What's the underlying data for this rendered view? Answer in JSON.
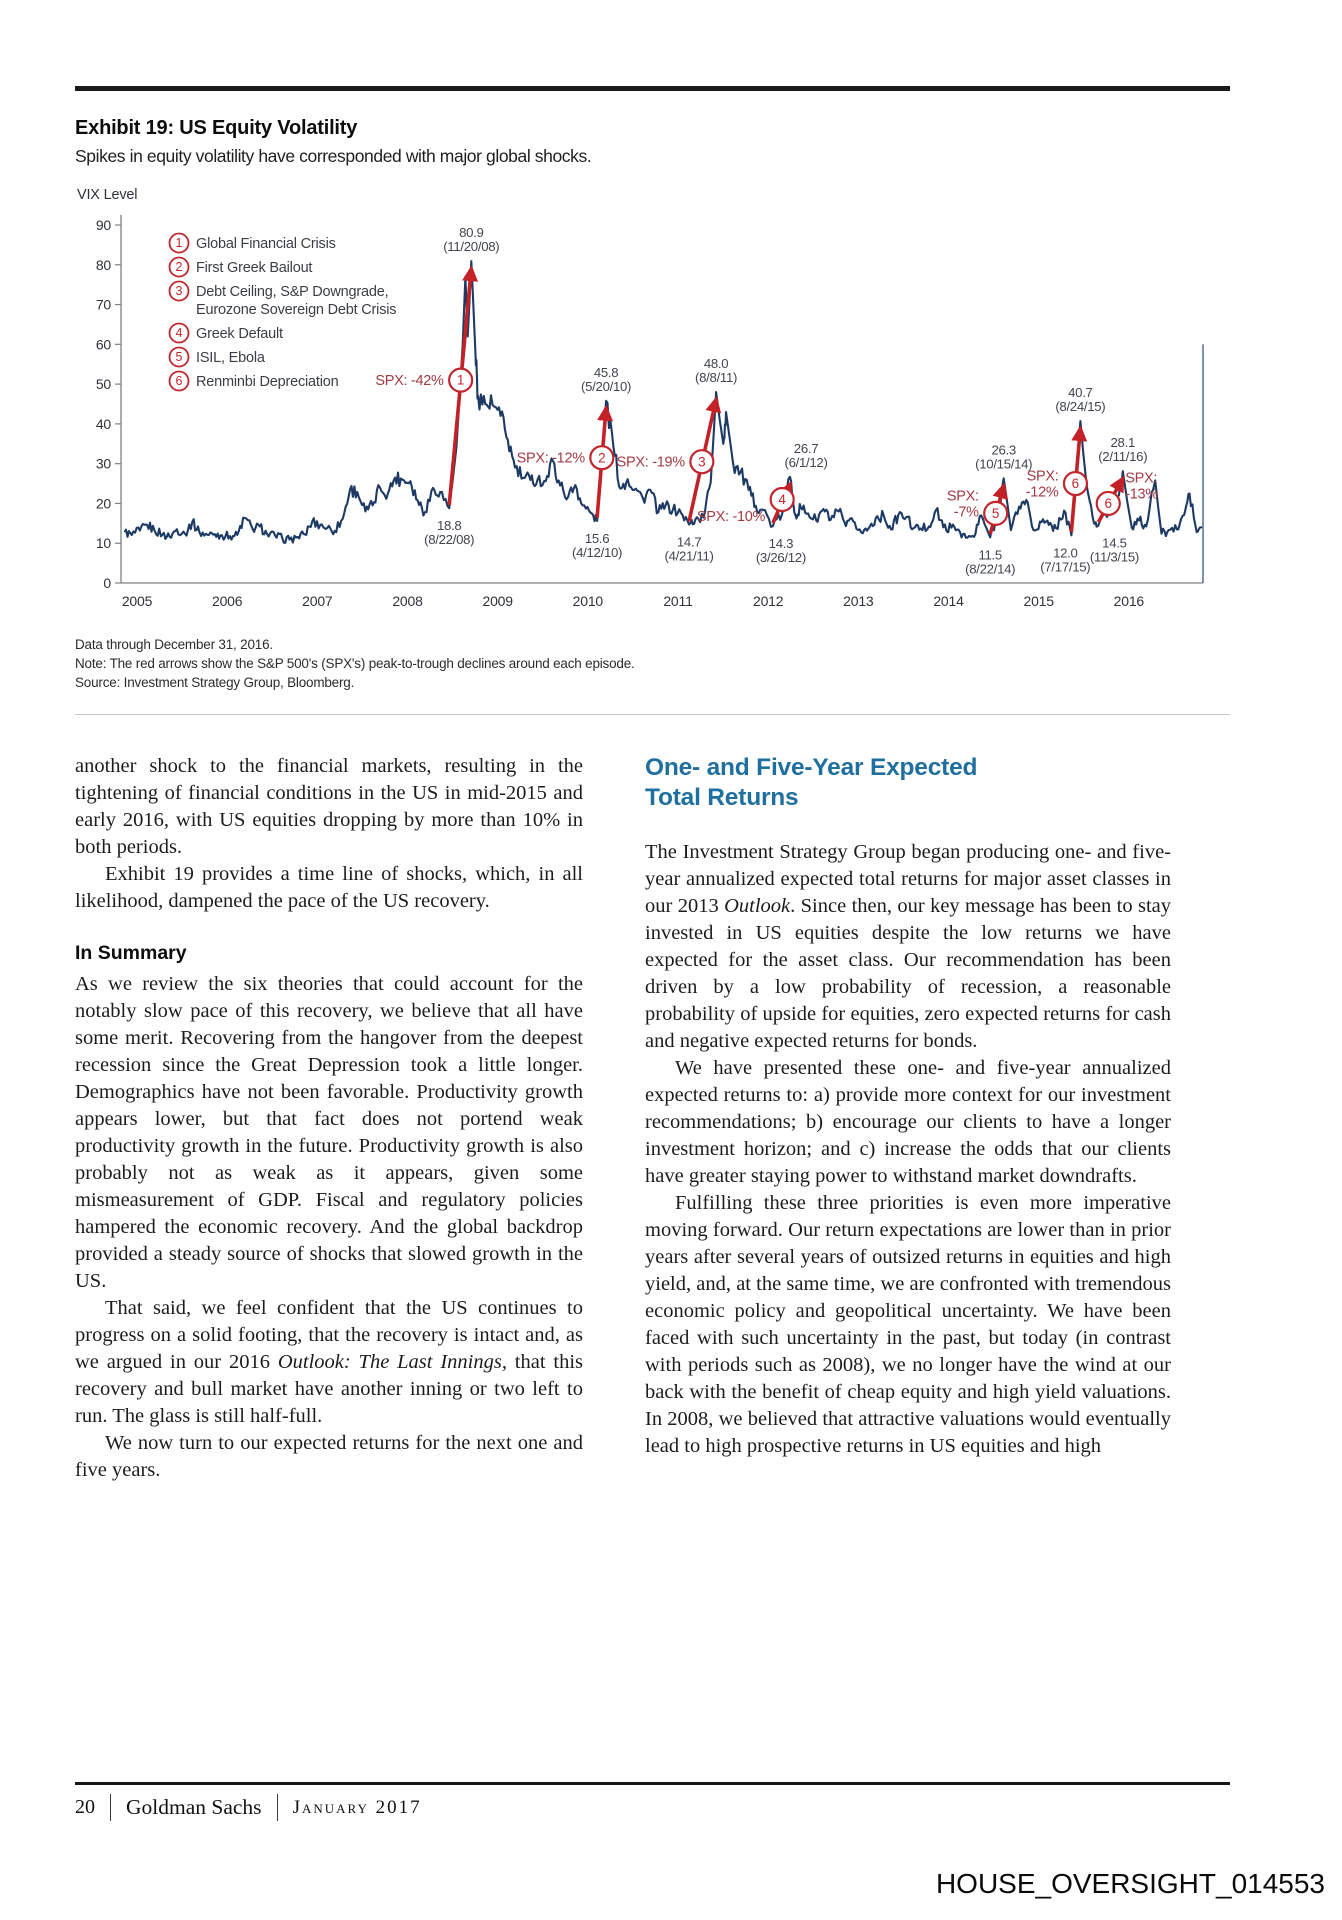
{
  "exhibit": {
    "title": "Exhibit 19: US Equity Volatility",
    "subtitle": "Spikes in equity volatility have corresponded with major global shocks.",
    "notes": [
      "Data through December 31, 2016.",
      "Note: The red arrows show the S&P 500's (SPX's) peak-to-trough declines around each episode.",
      "Source: Investment Strategy Group, Bloomberg."
    ]
  },
  "chart_data": {
    "type": "line",
    "title": "Exhibit 19: US Equity Volatility",
    "subtitle": "Spikes in equity volatility have corresponded with major global shocks.",
    "ylabel": "VIX Level",
    "xlabel": "",
    "ylim": [
      0,
      90
    ],
    "yticks": [
      0,
      10,
      20,
      30,
      40,
      50,
      60,
      70,
      80,
      90
    ],
    "xticks": [
      "2005",
      "2006",
      "2007",
      "2008",
      "2009",
      "2010",
      "2011",
      "2012",
      "2013",
      "2014",
      "2015",
      "2016"
    ],
    "grid": false,
    "legend_position": "top-left",
    "colors": {
      "line": "#1c3a64",
      "arrow": "#c42127",
      "spx_label": "#a23b44",
      "annotation": "#3f454d",
      "badge": "#c0272d"
    },
    "legend": [
      {
        "num": "1",
        "label": "Global Financial Crisis"
      },
      {
        "num": "2",
        "label": "First Greek Bailout"
      },
      {
        "num": "3",
        "label": "Debt Ceiling, S&P Downgrade,\nEurozone Sovereign Debt Crisis"
      },
      {
        "num": "4",
        "label": "Greek Default"
      },
      {
        "num": "5",
        "label": "ISIL, Ebola"
      },
      {
        "num": "6",
        "label": "Renminbi Depreciation"
      }
    ],
    "episodes": [
      {
        "num": "1",
        "spx": "-42%",
        "label_style": "inline",
        "label_side": "left",
        "label_v": 51,
        "badge_v": 51,
        "trough": {
          "v": 18.8,
          "t": 2008.64,
          "date": "(8/22/08)",
          "dx": 0
        },
        "peak": {
          "v": 80.9,
          "t": 2008.885,
          "date": "(11/20/08)",
          "dx": 0
        }
      },
      {
        "num": "2",
        "spx": "-12%",
        "label_style": "inline",
        "label_side": "left",
        "label_v": 31.5,
        "badge_v": 31.5,
        "trough": {
          "v": 15.6,
          "t": 2010.28,
          "date": "(4/12/10)",
          "dx": 0
        },
        "peak": {
          "v": 45.8,
          "t": 2010.38,
          "date": "(5/20/10)",
          "dx": 0
        }
      },
      {
        "num": "3",
        "spx": "-19%",
        "label_style": "inline",
        "label_side": "left",
        "label_v": 30.5,
        "badge_v": 30.5,
        "trough": {
          "v": 14.7,
          "t": 2011.3,
          "date": "(4/21/11)",
          "dx": 0
        },
        "peak": {
          "v": 48.0,
          "t": 2011.6,
          "date": "(8/8/11)",
          "dx": 0
        }
      },
      {
        "num": "4",
        "spx": "-10%",
        "label_style": "inline",
        "label_side": "left",
        "label_v": 16.8,
        "badge_v": 21,
        "trough": {
          "v": 14.3,
          "t": 2012.23,
          "date": "(3/26/12)",
          "dx": 8
        },
        "peak": {
          "v": 26.7,
          "t": 2012.42,
          "date": "(6/1/12)",
          "dx": 16
        }
      },
      {
        "num": "5",
        "spx": "-7%",
        "label_style": "stacked",
        "label_side": "left",
        "label_v": 22,
        "badge_v": 17.5,
        "trough": {
          "v": 11.5,
          "t": 2014.64,
          "date": "(8/22/14)",
          "dx": 0
        },
        "peak": {
          "v": 26.3,
          "t": 2014.79,
          "date": "(10/15/14)",
          "dx": 0
        }
      },
      {
        "num": "6",
        "spx": "-12%",
        "label_style": "stacked",
        "label_side": "left",
        "label_v": 27,
        "badge_v": 25,
        "trough": {
          "v": 12.0,
          "t": 2015.54,
          "date": "(7/17/15)",
          "dx": -6
        },
        "peak": {
          "v": 40.7,
          "t": 2015.64,
          "date": "(8/24/15)",
          "dx": 0
        }
      },
      {
        "num": "6",
        "spx": "-13%",
        "label_style": "stacked",
        "label_side": "right",
        "label_v": 26.5,
        "badge_v": 20,
        "trough": {
          "v": 14.5,
          "t": 2015.84,
          "date": "(11/3/15)",
          "dx": 16
        },
        "peak": {
          "v": 28.1,
          "t": 2016.11,
          "date": "(2/11/16)",
          "dx": 0
        }
      }
    ],
    "series": [
      {
        "name": "VIX",
        "points": [
          [
            2005.04,
            12.8
          ],
          [
            2005.12,
            12.1
          ],
          [
            2005.21,
            13.2
          ],
          [
            2005.29,
            14.6
          ],
          [
            2005.37,
            13.3
          ],
          [
            2005.46,
            12.2
          ],
          [
            2005.54,
            11.6
          ],
          [
            2005.62,
            13.5
          ],
          [
            2005.71,
            12.4
          ],
          [
            2005.79,
            15.3
          ],
          [
            2005.87,
            12.8
          ],
          [
            2005.96,
            12.1
          ],
          [
            2006.04,
            12.3
          ],
          [
            2006.12,
            12.0
          ],
          [
            2006.21,
            11.8
          ],
          [
            2006.29,
            12.1
          ],
          [
            2006.37,
            16.4
          ],
          [
            2006.46,
            13.6
          ],
          [
            2006.54,
            14.2
          ],
          [
            2006.62,
            12.3
          ],
          [
            2006.71,
            11.9
          ],
          [
            2006.79,
            11.2
          ],
          [
            2006.87,
            10.9
          ],
          [
            2006.96,
            11.6
          ],
          [
            2007.04,
            12.2
          ],
          [
            2007.12,
            15.4
          ],
          [
            2007.21,
            14.6
          ],
          [
            2007.29,
            13.9
          ],
          [
            2007.37,
            13.1
          ],
          [
            2007.46,
            16.2
          ],
          [
            2007.54,
            23.5
          ],
          [
            2007.62,
            22.9
          ],
          [
            2007.71,
            18.0
          ],
          [
            2007.79,
            19.5
          ],
          [
            2007.87,
            24.1
          ],
          [
            2007.96,
            22.5
          ],
          [
            2008.04,
            26.5
          ],
          [
            2008.12,
            26.0
          ],
          [
            2008.21,
            25.6
          ],
          [
            2008.29,
            20.8
          ],
          [
            2008.37,
            17.8
          ],
          [
            2008.46,
            23.9
          ],
          [
            2008.54,
            22.9
          ],
          [
            2008.64,
            18.8
          ],
          [
            2008.72,
            34.0
          ],
          [
            2008.79,
            59.9
          ],
          [
            2008.82,
            77.0
          ],
          [
            2008.845,
            62.0
          ],
          [
            2008.885,
            80.9
          ],
          [
            2008.93,
            58.0
          ],
          [
            2008.96,
            47.0
          ],
          [
            2009.04,
            45.0
          ],
          [
            2009.12,
            44.8
          ],
          [
            2009.21,
            42.0
          ],
          [
            2009.29,
            36.0
          ],
          [
            2009.37,
            29.0
          ],
          [
            2009.46,
            26.4
          ],
          [
            2009.54,
            25.9
          ],
          [
            2009.62,
            26.0
          ],
          [
            2009.71,
            25.6
          ],
          [
            2009.79,
            30.7
          ],
          [
            2009.87,
            24.5
          ],
          [
            2009.96,
            21.7
          ],
          [
            2010.04,
            24.6
          ],
          [
            2010.12,
            19.5
          ],
          [
            2010.21,
            17.6
          ],
          [
            2010.28,
            15.6
          ],
          [
            2010.38,
            45.8
          ],
          [
            2010.46,
            34.5
          ],
          [
            2010.54,
            23.7
          ],
          [
            2010.62,
            26.1
          ],
          [
            2010.71,
            23.7
          ],
          [
            2010.79,
            21.2
          ],
          [
            2010.87,
            23.4
          ],
          [
            2010.96,
            17.8
          ],
          [
            2011.04,
            19.5
          ],
          [
            2011.12,
            18.4
          ],
          [
            2011.21,
            17.7
          ],
          [
            2011.3,
            14.7
          ],
          [
            2011.37,
            16.0
          ],
          [
            2011.46,
            16.5
          ],
          [
            2011.54,
            25.3
          ],
          [
            2011.6,
            48.0
          ],
          [
            2011.68,
            35.0
          ],
          [
            2011.71,
            43.0
          ],
          [
            2011.79,
            29.9
          ],
          [
            2011.87,
            27.8
          ],
          [
            2011.96,
            23.4
          ],
          [
            2012.04,
            19.4
          ],
          [
            2012.12,
            18.4
          ],
          [
            2012.23,
            14.3
          ],
          [
            2012.33,
            17.2
          ],
          [
            2012.42,
            26.7
          ],
          [
            2012.48,
            17.1
          ],
          [
            2012.54,
            18.9
          ],
          [
            2012.62,
            17.5
          ],
          [
            2012.71,
            15.7
          ],
          [
            2012.79,
            18.6
          ],
          [
            2012.87,
            15.9
          ],
          [
            2012.96,
            18.0
          ],
          [
            2013.04,
            14.3
          ],
          [
            2013.12,
            15.5
          ],
          [
            2013.21,
            12.7
          ],
          [
            2013.29,
            13.7
          ],
          [
            2013.37,
            16.3
          ],
          [
            2013.46,
            16.9
          ],
          [
            2013.54,
            13.5
          ],
          [
            2013.62,
            17.0
          ],
          [
            2013.71,
            16.6
          ],
          [
            2013.79,
            13.8
          ],
          [
            2013.87,
            13.7
          ],
          [
            2013.96,
            14.2
          ],
          [
            2014.04,
            18.4
          ],
          [
            2014.12,
            14.0
          ],
          [
            2014.21,
            13.9
          ],
          [
            2014.29,
            13.4
          ],
          [
            2014.37,
            11.4
          ],
          [
            2014.46,
            11.6
          ],
          [
            2014.54,
            17.0
          ],
          [
            2014.64,
            11.5
          ],
          [
            2014.71,
            16.3
          ],
          [
            2014.79,
            26.3
          ],
          [
            2014.87,
            13.3
          ],
          [
            2014.96,
            19.2
          ],
          [
            2015.04,
            20.9
          ],
          [
            2015.12,
            13.3
          ],
          [
            2015.21,
            15.3
          ],
          [
            2015.29,
            14.6
          ],
          [
            2015.37,
            13.8
          ],
          [
            2015.46,
            18.2
          ],
          [
            2015.54,
            12.0
          ],
          [
            2015.64,
            40.7
          ],
          [
            2015.71,
            24.5
          ],
          [
            2015.79,
            15.1
          ],
          [
            2015.84,
            14.5
          ],
          [
            2015.96,
            18.2
          ],
          [
            2016.04,
            20.2
          ],
          [
            2016.11,
            28.1
          ],
          [
            2016.21,
            13.9
          ],
          [
            2016.29,
            15.7
          ],
          [
            2016.37,
            14.2
          ],
          [
            2016.47,
            25.8
          ],
          [
            2016.54,
            12.4
          ],
          [
            2016.62,
            13.3
          ],
          [
            2016.71,
            13.5
          ],
          [
            2016.79,
            17.1
          ],
          [
            2016.85,
            22.5
          ],
          [
            2016.93,
            12.8
          ],
          [
            2016.99,
            14.1
          ]
        ]
      }
    ]
  },
  "body": {
    "left": {
      "items": [
        {
          "type": "p",
          "indent": false,
          "runs": [
            [
              "t",
              "another shock to the financial markets, resulting in the tightening of financial conditions in the US in mid-2015 and early 2016, with US equities dropping by more than 10% in both periods."
            ]
          ]
        },
        {
          "type": "p",
          "indent": true,
          "runs": [
            [
              "t",
              "Exhibit 19 provides a time line of shocks, which, in all likelihood, dampened the pace of the US recovery."
            ]
          ]
        },
        {
          "type": "h",
          "text": "In Summary"
        },
        {
          "type": "p",
          "indent": false,
          "runs": [
            [
              "t",
              "As we review the six theories that could account for the notably slow pace of this recovery, we believe that all have some merit. Recovering from the hangover from the deepest recession since the Great Depression took a little longer. Demographics have not been favorable. Productivity growth appears lower, but that fact does not portend weak productivity growth in the future. Productivity growth is also probably not as weak as it appears, given some mismeasurement of GDP. Fiscal and regulatory policies hampered the economic recovery. And the global backdrop provided a steady source of shocks that slowed growth in the US."
            ]
          ]
        },
        {
          "type": "p",
          "indent": true,
          "runs": [
            [
              "t",
              "That said, we feel confident that the US continues to progress on a solid footing, that the recovery is intact and, as we argued in our 2016 "
            ],
            [
              "i",
              "Outlook: The Last Innings"
            ],
            [
              "t",
              ", that this recovery and bull market have another inning or two left to run. The glass is still half-full."
            ]
          ]
        },
        {
          "type": "p",
          "indent": true,
          "runs": [
            [
              "t",
              "We now turn to our expected returns for the next one and five years."
            ]
          ]
        }
      ]
    },
    "right": {
      "heading_lines": [
        "One- and Five-Year Expected",
        "Total Returns"
      ],
      "items": [
        {
          "type": "p",
          "indent": false,
          "runs": [
            [
              "t",
              "The Investment Strategy Group began producing one- and five-year annualized expected total returns for major asset classes in our 2013 "
            ],
            [
              "i",
              "Outlook"
            ],
            [
              "t",
              ". Since then, our key message has been to stay invested in US equities despite the low returns we have expected for the asset class. Our recommendation has been driven by a low probability of recession, a reasonable probability of upside for equities, zero expected returns for cash and negative expected returns for bonds."
            ]
          ]
        },
        {
          "type": "p",
          "indent": true,
          "runs": [
            [
              "t",
              "We have presented these one- and five-year annualized expected returns to: a) provide more context for our investment recommendations; b) encourage our clients to have a longer investment horizon; and c) increase the odds that our clients have greater staying power to withstand market downdrafts."
            ]
          ]
        },
        {
          "type": "p",
          "indent": true,
          "runs": [
            [
              "t",
              "Fulfilling these three priorities is even more imperative moving forward. Our return expectations are lower than in prior years after several years of outsized returns in equities and high yield, and, at the same time, we are confronted with tremendous economic policy and geopolitical uncertainty. We have been faced with such uncertainty in the past, but today (in contrast with periods such as 2008), we no longer have the wind at our back with the benefit of cheap equity and high yield valuations. In 2008, we believed that attractive valuations would eventually lead to high prospective returns in US equities and high"
            ]
          ]
        }
      ]
    }
  },
  "footer": {
    "page_number": "20",
    "brand": "Goldman Sachs",
    "date": "January 2017"
  },
  "watermark": "HOUSE_OVERSIGHT_014553"
}
